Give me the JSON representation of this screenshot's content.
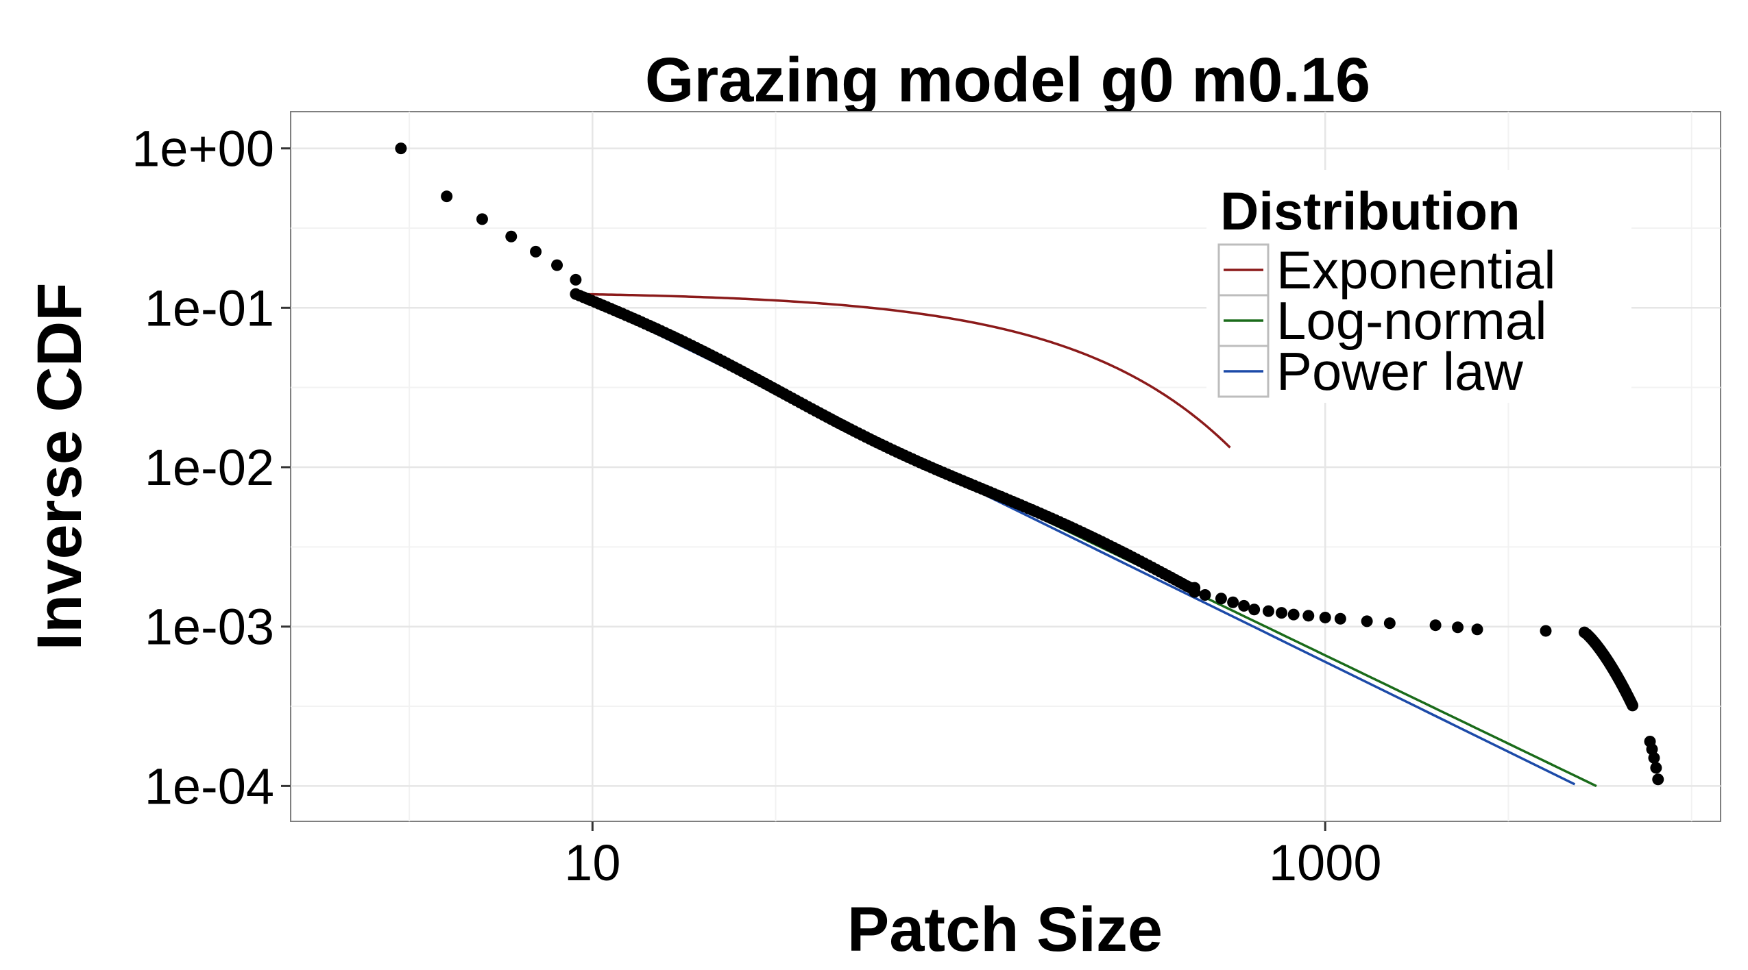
{
  "chart_data": {
    "type": "scatter",
    "title": "Grazing model g0 m0.16",
    "xlabel": "Patch Size",
    "ylabel": "Inverse CDF",
    "x_scale": "log10",
    "y_scale": "log10",
    "xlim": [
      1.5,
      12000
    ],
    "ylim": [
      6e-05,
      1.7
    ],
    "x_ticks": [
      {
        "value": 10,
        "label": "10"
      },
      {
        "value": 1000,
        "label": "1000"
      }
    ],
    "y_ticks": [
      {
        "value": 1,
        "label": "1e+00"
      },
      {
        "value": 0.1,
        "label": "1e-01"
      },
      {
        "value": 0.01,
        "label": "1e-02"
      },
      {
        "value": 0.001,
        "label": "1e-03"
      },
      {
        "value": 0.0001,
        "label": "1e-04"
      }
    ],
    "grid": true,
    "legend": {
      "title": "Distribution",
      "position": "top-right",
      "entries": [
        {
          "label": "Exponential",
          "color": "#8B1A1A"
        },
        {
          "label": "Log-normal",
          "color": "#1A6B1A"
        },
        {
          "label": "Power law",
          "color": "#1C4AA8"
        }
      ]
    },
    "points": {
      "x": [
        3,
        4,
        5,
        6,
        7,
        8,
        9
      ],
      "y": [
        1.0,
        0.5,
        0.36,
        0.28,
        0.225,
        0.185,
        0.15
      ]
    },
    "points_dense": {
      "from_x": 9,
      "to_x": 440,
      "from_y": 0.122,
      "to_y": 0.00175,
      "slope": -1.1
    },
    "points_tail": {
      "x": [
        440,
        470,
        520,
        560,
        600,
        640,
        700,
        760,
        820,
        900,
        1000,
        1100,
        1300,
        1500,
        2000,
        2300,
        2600,
        4000
      ],
      "y": [
        0.00165,
        0.00158,
        0.0015,
        0.00142,
        0.00135,
        0.00128,
        0.00125,
        0.00122,
        0.00119,
        0.00117,
        0.00114,
        0.00112,
        0.00108,
        0.00105,
        0.00102,
        0.00099,
        0.00096,
        0.00094
      ]
    },
    "points_cluster": {
      "from_x": 5100,
      "to_x": 6900,
      "from_y": 0.00092,
      "to_y": 0.00032
    },
    "points_end": {
      "x": [
        7700,
        7800,
        7900,
        8000,
        8100
      ],
      "y": [
        0.00019,
        0.00017,
        0.00015,
        0.00013,
        0.00011
      ]
    },
    "series": [
      {
        "name": "Exponential",
        "color": "#8B1A1A",
        "x": [
          9,
          30,
          60,
          100,
          150,
          200,
          250,
          300,
          400,
          500,
          550
        ],
        "y": [
          0.122,
          0.1113,
          0.0977,
          0.0826,
          0.0671,
          0.0545,
          0.0443,
          0.036,
          0.0237,
          0.0157,
          0.0127
        ],
        "fit": {
          "kind": "exponential",
          "x0": 9,
          "y0": 0.122,
          "rate": 0.0041,
          "xmax": 550
        }
      },
      {
        "name": "Log-normal",
        "color": "#1A6B1A",
        "x": [
          9,
          5500
        ],
        "y": [
          0.122,
          0.0001
        ],
        "fit": {
          "kind": "power",
          "x0": 9,
          "y0": 0.122,
          "slope": -1.108,
          "xmax": 5500
        }
      },
      {
        "name": "Power law",
        "color": "#1C4AA8",
        "x": [
          9,
          4800
        ],
        "y": [
          0.122,
          0.000105
        ],
        "fit": {
          "kind": "power",
          "x0": 9,
          "y0": 0.122,
          "slope": -1.128,
          "xmax": 4800
        }
      }
    ]
  }
}
